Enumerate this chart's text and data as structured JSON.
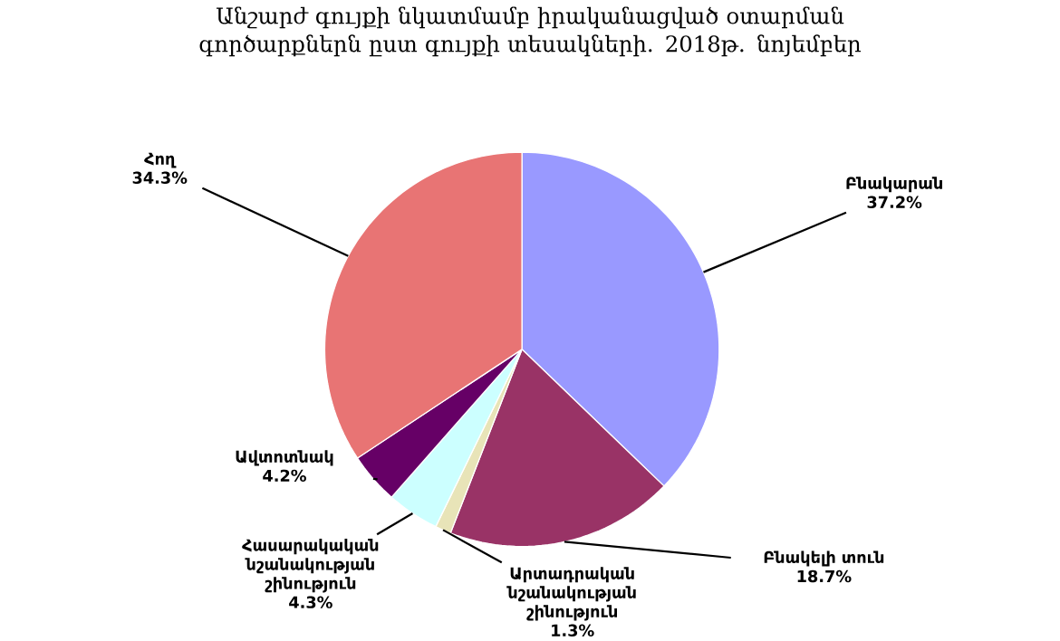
{
  "chart_data": {
    "type": "pie",
    "title": "Անշարժ գույքի նկատմամբ իրականացված օտարման գործարքներն ըստ գույքի տեսակների. 2018թ. նոյեմբեր",
    "categories": [
      "Բնակարան",
      "Բնակելի տուն",
      "Արտադրական նշանակության շինություն",
      "Հասարակական նշանակության շինություն",
      "Ավտոտնակ",
      "Հող"
    ],
    "values": [
      37.2,
      18.7,
      1.3,
      4.3,
      4.2,
      34.3
    ],
    "value_labels": [
      "37.2%",
      "18.7%",
      "1.3%",
      "4.3%",
      "4.2%",
      "34.3%"
    ],
    "colors": [
      "#9999ff",
      "#993366",
      "#e8e4b8",
      "#ccffff",
      "#660066",
      "#e87474"
    ]
  }
}
